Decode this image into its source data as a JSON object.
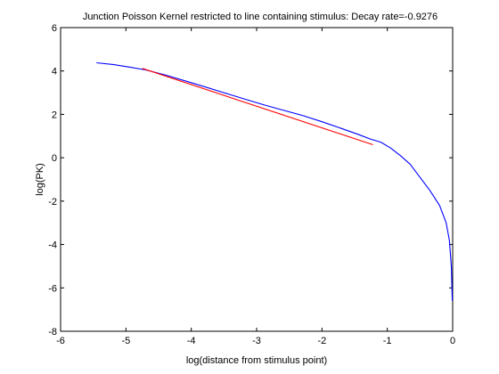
{
  "chart_data": {
    "type": "line",
    "title": "Junction Poisson Kernel restricted to line containing stimulus:  Decay rate=-0.9276",
    "xlabel": "log(distance from stimulus point)",
    "ylabel": "log(PK)",
    "xlim": [
      -6,
      0
    ],
    "ylim": [
      -8,
      6
    ],
    "xticks": [
      -6,
      -5,
      -4,
      -3,
      -2,
      -1,
      0
    ],
    "yticks": [
      -8,
      -6,
      -4,
      -2,
      0,
      2,
      4,
      6
    ],
    "grid": false,
    "legend": "none",
    "series": [
      {
        "color": "#0000ff",
        "x": [
          -5.45,
          -5.2,
          -4.95,
          -4.7,
          -4.4,
          -4.1,
          -3.8,
          -3.5,
          -3.2,
          -2.9,
          -2.6,
          -2.3,
          -2.0,
          -1.7,
          -1.45,
          -1.25,
          -1.1,
          -0.95,
          -0.8,
          -0.65,
          -0.5,
          -0.35,
          -0.2,
          -0.1,
          -0.05,
          -0.02,
          -0.005
        ],
        "y": [
          4.38,
          4.3,
          4.18,
          4.05,
          3.82,
          3.55,
          3.28,
          3.0,
          2.72,
          2.45,
          2.2,
          1.95,
          1.66,
          1.35,
          1.08,
          0.85,
          0.72,
          0.45,
          0.1,
          -0.3,
          -0.9,
          -1.5,
          -2.2,
          -3.0,
          -3.8,
          -5.0,
          -6.6
        ]
      },
      {
        "color": "#ff0000",
        "x": [
          -4.75,
          -1.22
        ],
        "y": [
          4.12,
          0.6
        ]
      }
    ]
  }
}
